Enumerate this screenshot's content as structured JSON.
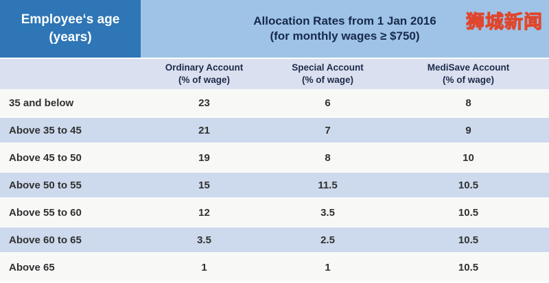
{
  "banner": {
    "age_line1": "Employee‘s age",
    "age_line2": "(years)",
    "watermark": "狮城新闻"
  },
  "colors": {
    "age_box_bg": "#2e76b5",
    "banner_bg": "#9ec3e6",
    "column_header_bg": "#dae0ef",
    "stripe_row_bg": "#cdd9ec",
    "light_row_bg": "#f8f8f7",
    "title_text": "#17294a",
    "body_text": "#303030",
    "watermark_fill": "#f6e94b",
    "watermark_outline": "#e0462c"
  },
  "chart_data": {
    "type": "table",
    "title": "Allocation Rates from 1 Jan 2016",
    "subtitle": "(for monthly wages ≥ $750)",
    "corner_header": "Employee‘s age (years)",
    "columns": [
      {
        "label": "Ordinary Account",
        "unit": "(% of wage)"
      },
      {
        "label": "Special Account",
        "unit": "(% of wage)"
      },
      {
        "label": "MediSave Account",
        "unit": "(% of wage)"
      }
    ],
    "rows": [
      {
        "age": "35 and below",
        "values": [
          23,
          6,
          8
        ]
      },
      {
        "age": "Above 35 to 45",
        "values": [
          21,
          7,
          9
        ]
      },
      {
        "age": "Above 45 to 50",
        "values": [
          19,
          8,
          10
        ]
      },
      {
        "age": "Above 50 to 55",
        "values": [
          15,
          11.5,
          10.5
        ]
      },
      {
        "age": "Above 55 to 60",
        "values": [
          12,
          3.5,
          10.5
        ]
      },
      {
        "age": "Above 60 to 65",
        "values": [
          3.5,
          2.5,
          10.5
        ]
      },
      {
        "age": "Above 65",
        "values": [
          1,
          1,
          10.5
        ]
      }
    ],
    "layout": {
      "stripe_alternation": "odd rows blue",
      "grid": "off",
      "legend": "none"
    }
  }
}
